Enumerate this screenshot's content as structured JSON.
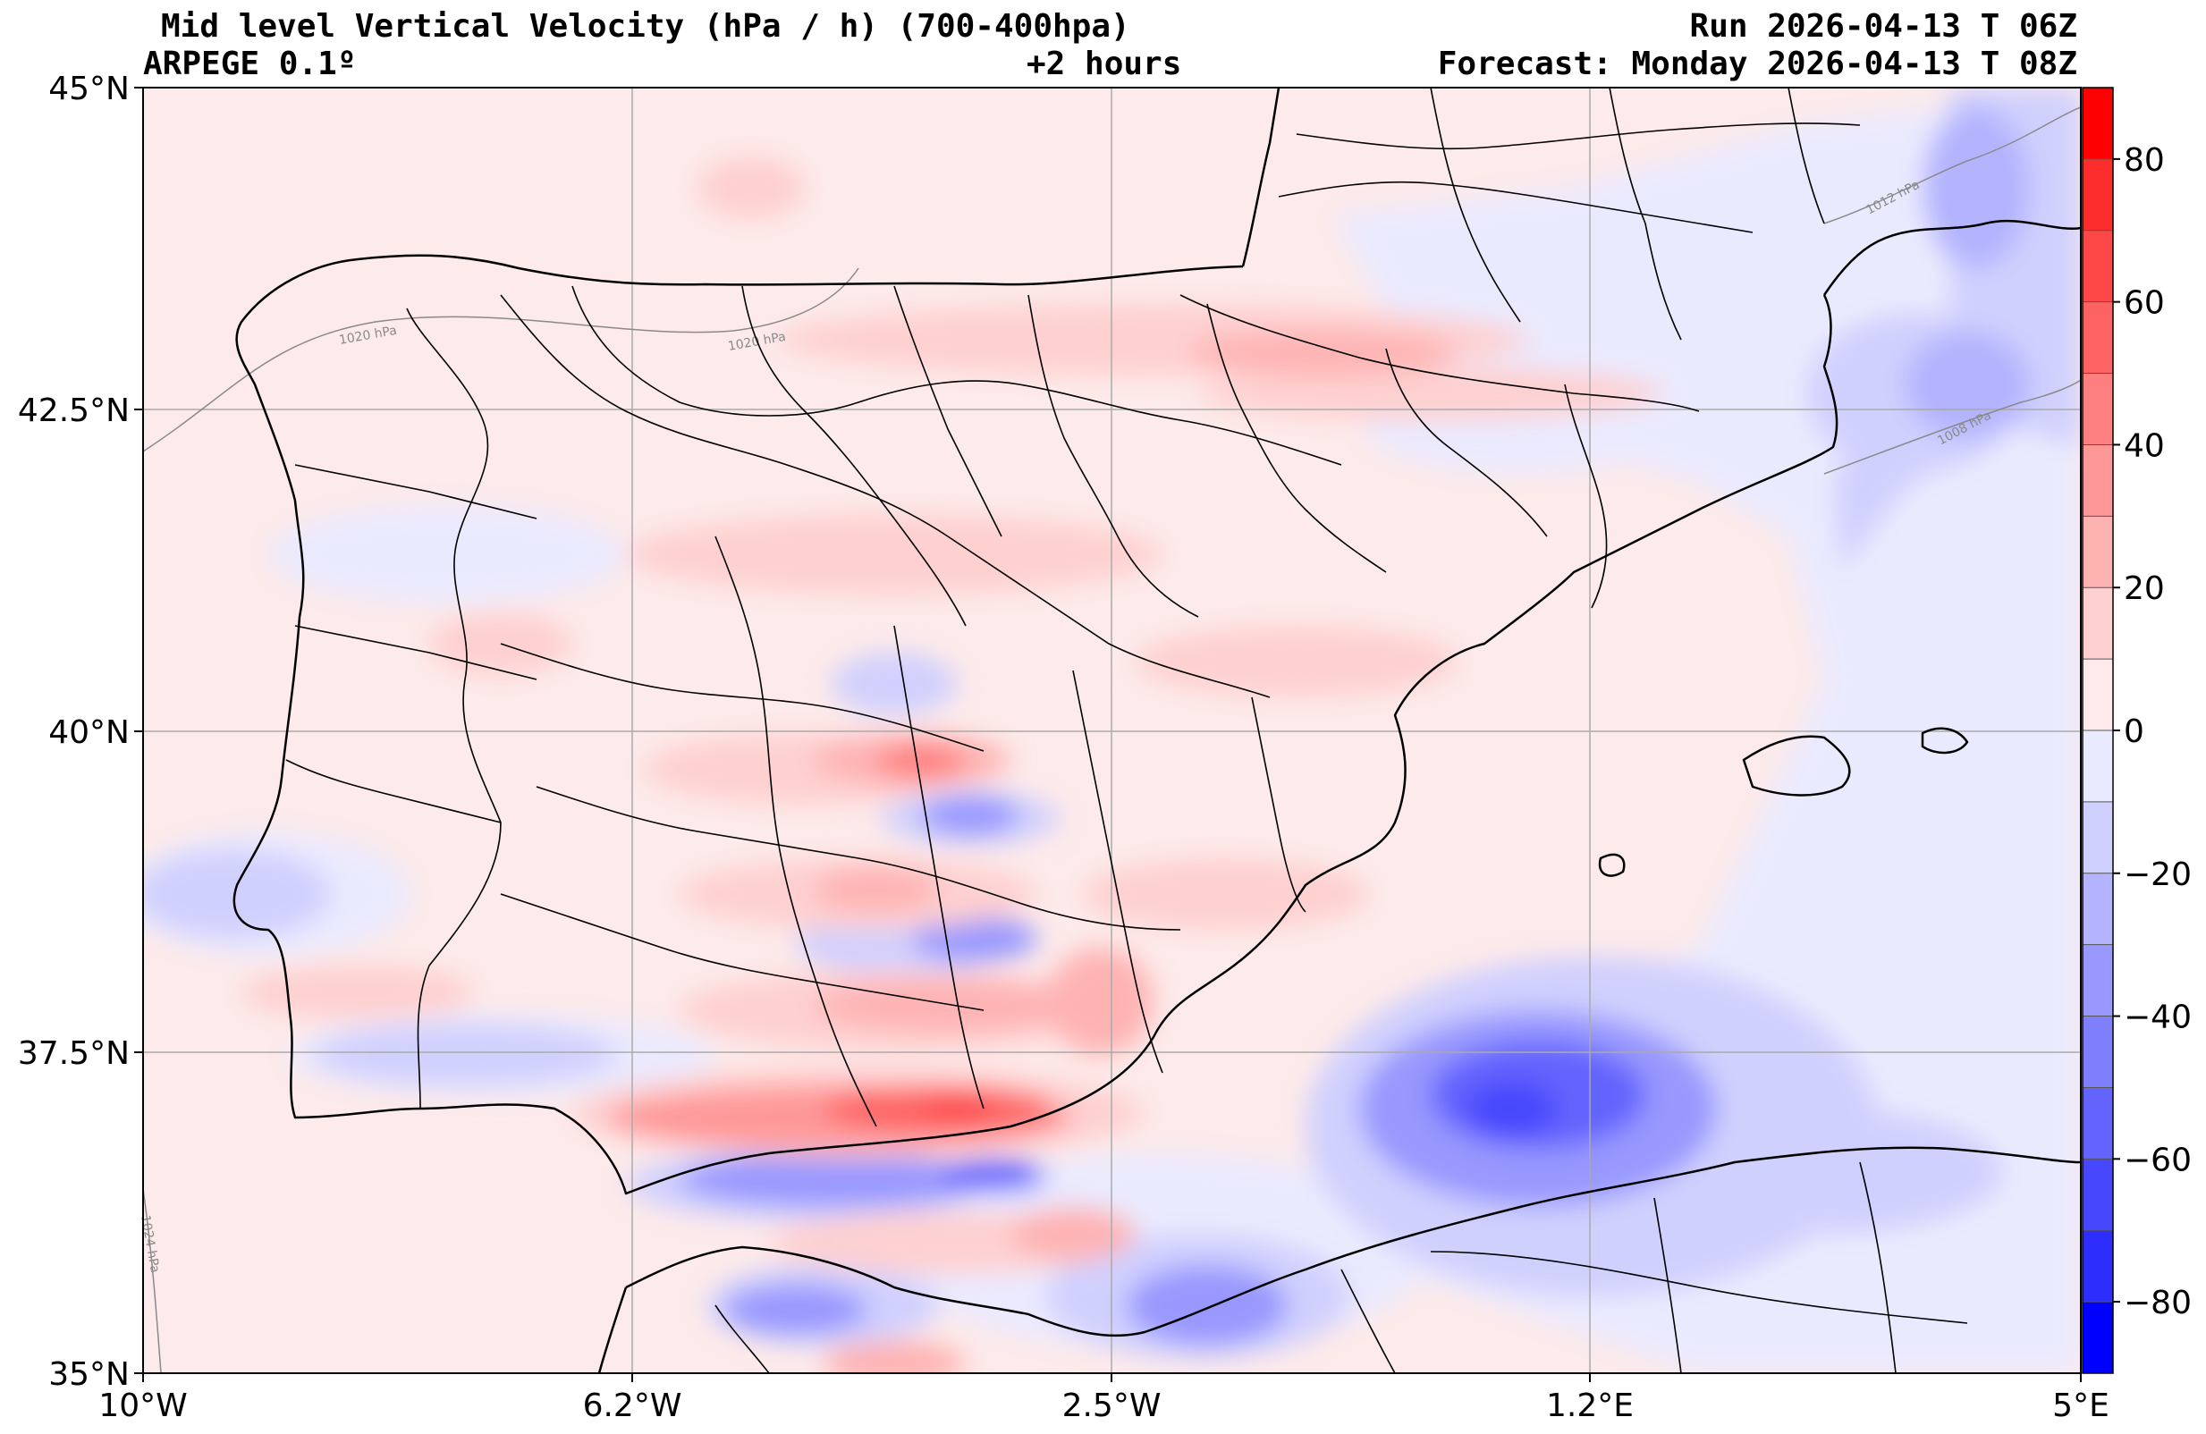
{
  "header": {
    "title_left": "Mid level Vertical Velocity (hPa / h)  (700-400hpa)",
    "run": "Run 2026-04-13 T 06Z",
    "model": "ARPEGE 0.1º",
    "lead": "+2 hours",
    "forecast": "Forecast: Monday 2026-04-13 T 08Z"
  },
  "axes": {
    "lat_labels": [
      "45°N",
      "42.5°N",
      "40°N",
      "37.5°N",
      "35°N"
    ],
    "lon_labels": [
      "10°W",
      "6.2°W",
      "2.5°W",
      "1.2°E",
      "5°E"
    ]
  },
  "isobars": [
    "1020 hPa",
    "1020 hPa",
    "1012 hPa",
    "1008 hPa",
    "1024 hPa"
  ],
  "colorbar": {
    "ticks": [
      "80",
      "60",
      "40",
      "20",
      "0",
      "−20",
      "−40",
      "−60",
      "−80"
    ],
    "levels": [
      {
        "color": "#fe0000"
      },
      {
        "color": "#fe2d2d"
      },
      {
        "color": "#fe4747"
      },
      {
        "color": "#fe6363"
      },
      {
        "color": "#fe7f7f"
      },
      {
        "color": "#fe9898"
      },
      {
        "color": "#feb3b3"
      },
      {
        "color": "#fed0d0"
      },
      {
        "color": "#feeaea"
      },
      {
        "color": "#eaeafe"
      },
      {
        "color": "#d0d0fe"
      },
      {
        "color": "#b3b3fe"
      },
      {
        "color": "#9898fe"
      },
      {
        "color": "#7f7ffe"
      },
      {
        "color": "#6363fe"
      },
      {
        "color": "#4747fe"
      },
      {
        "color": "#2d2dfe"
      },
      {
        "color": "#0000fe"
      }
    ]
  }
}
